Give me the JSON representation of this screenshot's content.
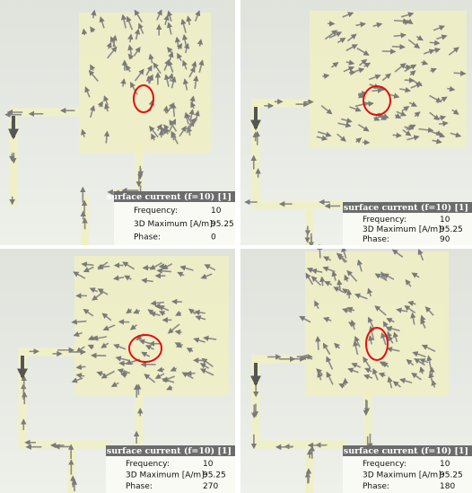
{
  "panels": [
    {
      "title": "surface current (f=10) [1]",
      "rows": [
        {
          "label": "Frequency:",
          "value": 10
        },
        {
          "label": "3D Maximum [A/m]:",
          "value": 95.25
        },
        {
          "label": "Phase:",
          "value": 0
        }
      ]
    },
    {
      "title": "surface current (f=10) [1]",
      "rows": [
        {
          "label": "Frequency:",
          "value": 10
        },
        {
          "label": "3D Maximum [A/m]:",
          "value": 95.25
        },
        {
          "label": "Phase:",
          "value": 90
        }
      ]
    },
    {
      "title": "surface current (f=10) [1]",
      "rows": [
        {
          "label": "Frequency:",
          "value": 10
        },
        {
          "label": "3D Maximum [A/m]:",
          "value": 95.25
        },
        {
          "label": "Phase:",
          "value": 270
        }
      ]
    },
    {
      "title": "surface current (f=10) [1]",
      "rows": [
        {
          "label": "Frequency:",
          "value": 10
        },
        {
          "label": "3D Maximum [A/m]:",
          "value": 95.25
        },
        {
          "label": "Phase:",
          "value": 180
        }
      ]
    }
  ]
}
